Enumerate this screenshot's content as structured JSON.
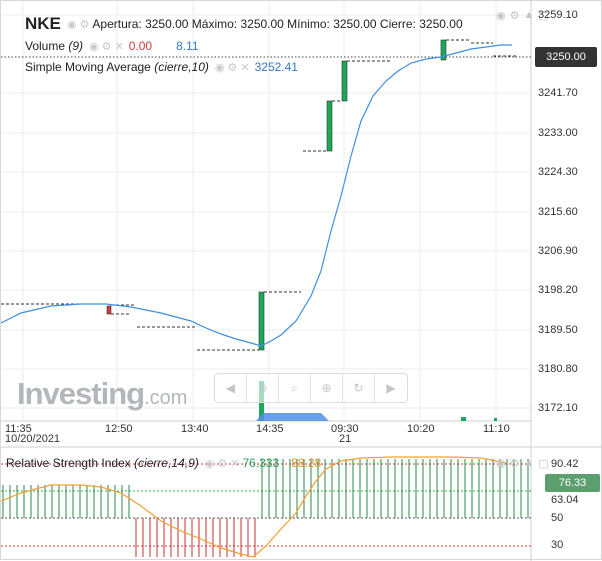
{
  "header": {
    "symbol": "NKE",
    "ohlc": "Apertura: 3250.00 Máximo: 3250.00 Mínimo: 3250.00 Cierre: 3250.00",
    "volume_label": "Volume",
    "volume_param": "(9)",
    "volume_val1": "0.00",
    "volume_val2": "8.11",
    "sma_label": "Simple Moving Average",
    "sma_param": "(cierre,10)",
    "sma_value": "3252.41"
  },
  "price_axis": [
    "3259.10",
    "3241.70",
    "3233.00",
    "3224.30",
    "3215.60",
    "3206.90",
    "3198.20",
    "3189.50",
    "3180.80",
    "3172.10"
  ],
  "current_price": "3250.00",
  "time_axis": [
    {
      "label": "11:35",
      "sub": "10/20/2021"
    },
    {
      "label": "12:50",
      "sub": ""
    },
    {
      "label": "13:40",
      "sub": ""
    },
    {
      "label": "14:35",
      "sub": ""
    },
    {
      "label": "09:30",
      "sub": "21"
    },
    {
      "label": "10:20",
      "sub": ""
    },
    {
      "label": "11:10",
      "sub": ""
    }
  ],
  "rsi": {
    "label": "Relative Strength Index",
    "param": "(cierre,14,9)",
    "value1": "76.333",
    "value2": "88.28",
    "axis": [
      "90.42",
      "63.04",
      "50",
      "30"
    ],
    "current": "76.33"
  },
  "logo": {
    "name": "Investing",
    "suffix": ".com"
  },
  "icons": {
    "eye": "eye-icon",
    "settings": "gear-icon",
    "close": "close-icon",
    "lock": "lock-icon",
    "collapse": "chevron-down-icon"
  },
  "colors": {
    "up": "#1aa85a",
    "down": "#d23a3a",
    "sma": "#3f8fe0",
    "rsi_line": "#f0a030",
    "volume": "#4f8fe6"
  }
}
